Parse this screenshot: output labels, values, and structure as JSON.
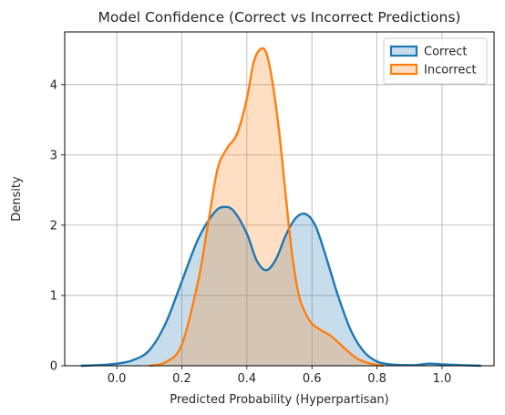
{
  "chart_data": {
    "type": "area",
    "title": "Model Confidence (Correct vs Incorrect Predictions)",
    "xlabel": "Predicted Probability (Hyperpartisan)",
    "ylabel": "Density",
    "xlim": [
      -0.16,
      1.16
    ],
    "ylim": [
      0,
      4.75
    ],
    "xticks": [
      0.0,
      0.2,
      0.4,
      0.6,
      0.8,
      1.0
    ],
    "xtick_labels": [
      "0.0",
      "0.2",
      "0.4",
      "0.6",
      "0.8",
      "1.0"
    ],
    "yticks": [
      0,
      1,
      2,
      3,
      4
    ],
    "ytick_labels": [
      "0",
      "1",
      "2",
      "3",
      "4"
    ],
    "grid": true,
    "legend": "top-right",
    "series": [
      {
        "name": "Correct",
        "color": "#1f77b4",
        "fill": "#1f77b4",
        "x": [
          -0.11,
          -0.05,
          0.0,
          0.05,
          0.1,
          0.15,
          0.2,
          0.25,
          0.3,
          0.33,
          0.36,
          0.4,
          0.43,
          0.46,
          0.49,
          0.52,
          0.55,
          0.58,
          0.61,
          0.64,
          0.68,
          0.72,
          0.76,
          0.8,
          0.84,
          0.88,
          0.92,
          0.96,
          1.0,
          1.05,
          1.12
        ],
        "y": [
          0.0,
          0.01,
          0.03,
          0.08,
          0.22,
          0.6,
          1.2,
          1.8,
          2.18,
          2.26,
          2.2,
          1.88,
          1.5,
          1.36,
          1.52,
          1.86,
          2.1,
          2.16,
          2.0,
          1.6,
          1.0,
          0.5,
          0.2,
          0.06,
          0.02,
          0.01,
          0.01,
          0.03,
          0.02,
          0.01,
          0.0
        ]
      },
      {
        "name": "Incorrect",
        "color": "#ff7f0e",
        "fill": "#ff7f0e",
        "x": [
          0.1,
          0.15,
          0.2,
          0.25,
          0.28,
          0.31,
          0.34,
          0.37,
          0.4,
          0.42,
          0.44,
          0.46,
          0.48,
          0.5,
          0.52,
          0.54,
          0.56,
          0.58,
          0.6,
          0.63,
          0.66,
          0.7,
          0.74,
          0.78,
          0.82
        ],
        "y": [
          0.0,
          0.05,
          0.3,
          1.2,
          2.0,
          2.8,
          3.1,
          3.3,
          3.8,
          4.3,
          4.5,
          4.45,
          4.0,
          3.3,
          2.4,
          1.55,
          1.0,
          0.75,
          0.6,
          0.5,
          0.42,
          0.25,
          0.1,
          0.03,
          0.0
        ]
      }
    ]
  }
}
